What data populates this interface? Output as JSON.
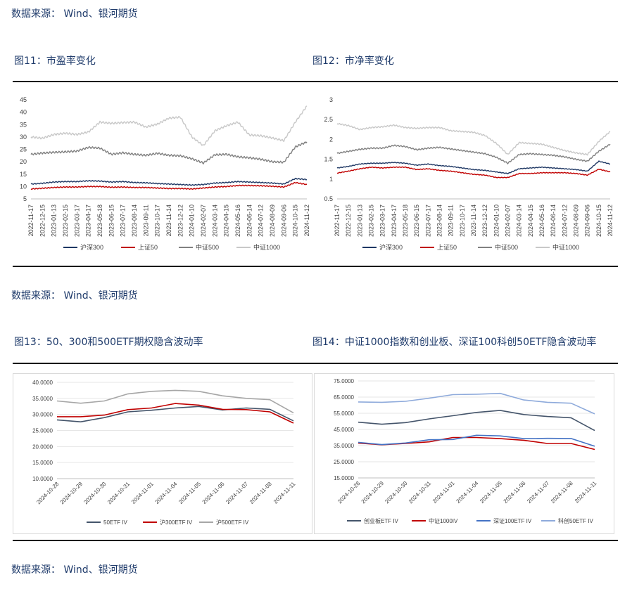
{
  "source_line_1": "数据来源： Wind、银河期货",
  "source_line_2": "数据来源： Wind、银河期货",
  "source_line_3": "数据来源： Wind、银河期货",
  "fig11": {
    "title": "图11：市盈率变化"
  },
  "fig12": {
    "title": "图12：市净率变化"
  },
  "fig13": {
    "title": "图13：50、300和500ETF期权隐含波动率"
  },
  "fig14": {
    "title": "图14：中证1000指数和创业板、深证100科创50ETF隐含波动率"
  },
  "chart_data": [
    {
      "id": "fig11",
      "type": "line",
      "title": "",
      "ylim": [
        5,
        45
      ],
      "yticks": [
        5,
        10,
        15,
        20,
        25,
        30,
        35,
        40,
        45
      ],
      "categories": [
        "2022-11-17",
        "2022-12-15",
        "2023-01-13",
        "2023-02-15",
        "2023-03-17",
        "2023-04-17",
        "2023-05-18",
        "2023-06-15",
        "2023-07-17",
        "2023-08-14",
        "2023-09-11",
        "2023-10-17",
        "2023-11-14",
        "2023-12-12",
        "2024-01-10",
        "2024-02-07",
        "2024-03-14",
        "2024-04-15",
        "2024-05-16",
        "2024-06-14",
        "2024-07-12",
        "2024-08-09",
        "2024-09-06",
        "2024-10-15",
        "2024-11-12"
      ],
      "legend_position": "bottom",
      "series": [
        {
          "name": "沪深300",
          "color": "#1f3864",
          "values": [
            11.0,
            11.3,
            11.8,
            12.0,
            12.0,
            12.3,
            12.2,
            11.8,
            12.0,
            11.6,
            11.5,
            11.2,
            11.0,
            10.8,
            10.6,
            10.8,
            11.4,
            11.6,
            12.0,
            11.8,
            11.6,
            11.4,
            11.0,
            13.2,
            12.8
          ]
        },
        {
          "name": "上证50",
          "color": "#c00000",
          "values": [
            9.0,
            9.3,
            9.6,
            9.8,
            9.8,
            10.0,
            10.0,
            9.7,
            9.8,
            9.6,
            9.6,
            9.4,
            9.2,
            9.2,
            9.0,
            9.4,
            9.8,
            10.0,
            10.4,
            10.4,
            10.3,
            10.1,
            9.8,
            11.6,
            10.8
          ]
        },
        {
          "name": "中证500",
          "color": "#808080",
          "values": [
            23.0,
            23.5,
            23.8,
            24.0,
            24.3,
            25.8,
            25.5,
            23.0,
            23.6,
            23.0,
            22.6,
            23.4,
            22.6,
            22.4,
            21.2,
            19.5,
            22.8,
            23.0,
            22.0,
            21.6,
            21.0,
            20.0,
            19.8,
            26.0,
            28.0
          ]
        },
        {
          "name": "中证1000",
          "color": "#c8c8c8",
          "values": [
            30.0,
            29.5,
            31.0,
            31.5,
            31.0,
            32.0,
            36.0,
            35.5,
            35.8,
            36.0,
            34.0,
            35.2,
            37.6,
            38.0,
            30.0,
            26.5,
            32.5,
            34.5,
            36.0,
            30.8,
            30.5,
            29.6,
            28.5,
            36.0,
            42.5
          ]
        }
      ]
    },
    {
      "id": "fig12",
      "type": "line",
      "title": "",
      "ylim": [
        0.5,
        3.0
      ],
      "yticks": [
        0.5,
        1.0,
        1.5,
        2.0,
        2.5,
        3.0
      ],
      "categories": [
        "2022-11-17",
        "2022-12-15",
        "2023-01-13",
        "2023-02-15",
        "2023-03-17",
        "2023-04-17",
        "2023-05-18",
        "2023-06-15",
        "2023-07-17",
        "2023-08-14",
        "2023-09-11",
        "2023-10-17",
        "2023-11-14",
        "2023-12-12",
        "2024-01-10",
        "2024-02-07",
        "2024-03-14",
        "2024-04-15",
        "2024-05-16",
        "2024-06-14",
        "2024-07-12",
        "2024-08-09",
        "2024-09-06",
        "2024-10-15",
        "2024-11-12"
      ],
      "legend_position": "bottom",
      "series": [
        {
          "name": "沪深300",
          "color": "#1f3864",
          "values": [
            1.28,
            1.32,
            1.38,
            1.4,
            1.4,
            1.42,
            1.4,
            1.35,
            1.38,
            1.34,
            1.32,
            1.28,
            1.24,
            1.22,
            1.18,
            1.14,
            1.26,
            1.28,
            1.3,
            1.28,
            1.26,
            1.24,
            1.2,
            1.45,
            1.38
          ]
        },
        {
          "name": "上证50",
          "color": "#c00000",
          "values": [
            1.15,
            1.2,
            1.26,
            1.3,
            1.28,
            1.3,
            1.3,
            1.24,
            1.26,
            1.22,
            1.2,
            1.16,
            1.12,
            1.1,
            1.04,
            1.04,
            1.14,
            1.14,
            1.16,
            1.16,
            1.16,
            1.14,
            1.1,
            1.25,
            1.18
          ]
        },
        {
          "name": "中证500",
          "color": "#808080",
          "values": [
            1.65,
            1.7,
            1.75,
            1.78,
            1.78,
            1.85,
            1.82,
            1.74,
            1.78,
            1.8,
            1.76,
            1.72,
            1.68,
            1.64,
            1.55,
            1.4,
            1.62,
            1.64,
            1.62,
            1.6,
            1.56,
            1.5,
            1.45,
            1.7,
            1.88
          ]
        },
        {
          "name": "中证1000",
          "color": "#c8c8c8",
          "values": [
            2.4,
            2.35,
            2.25,
            2.3,
            2.32,
            2.36,
            2.3,
            2.28,
            2.3,
            2.3,
            2.22,
            2.2,
            2.18,
            2.1,
            1.9,
            1.62,
            1.92,
            1.9,
            1.88,
            1.8,
            1.72,
            1.66,
            1.62,
            1.95,
            2.2
          ]
        }
      ]
    },
    {
      "id": "fig13",
      "type": "line",
      "title": "",
      "ylim": [
        10,
        40
      ],
      "yticks": [
        "10.0000",
        "15.0000",
        "20.0000",
        "25.0000",
        "30.0000",
        "35.0000",
        "40.0000"
      ],
      "categories": [
        "2024-10-28",
        "2024-10-29",
        "2024-10-30",
        "2024-10-31",
        "2024-11-01",
        "2024-11-04",
        "2024-11-05",
        "2024-11-06",
        "2024-11-07",
        "2024-11-08",
        "2024-11-11"
      ],
      "legend_position": "bottom",
      "series": [
        {
          "name": "50ETF IV",
          "color": "#44546a",
          "values": [
            28.3,
            27.7,
            29.0,
            30.8,
            31.3,
            32.0,
            32.5,
            31.4,
            32.0,
            31.6,
            28.0
          ]
        },
        {
          "name": "沪300ETF IV",
          "color": "#c00000",
          "values": [
            29.3,
            29.3,
            29.8,
            31.5,
            32.0,
            33.4,
            32.9,
            31.6,
            31.5,
            30.8,
            27.3
          ]
        },
        {
          "name": "沪500ETF IV",
          "color": "#a6a6a6",
          "values": [
            34.2,
            33.5,
            34.2,
            36.4,
            37.2,
            37.5,
            37.2,
            35.8,
            35.0,
            34.6,
            30.5
          ]
        }
      ]
    },
    {
      "id": "fig14",
      "type": "line",
      "title": "",
      "ylim": [
        15,
        75
      ],
      "yticks": [
        "15.0000",
        "25.0000",
        "35.0000",
        "45.0000",
        "55.0000",
        "65.0000",
        "75.0000"
      ],
      "categories": [
        "2024-10-28",
        "2024-10-29",
        "2024-10-30",
        "2024-10-31",
        "2024-11-01",
        "2024-11-04",
        "2024-11-05",
        "2024-11-06",
        "2024-11-07",
        "2024-11-08",
        "2024-11-11"
      ],
      "legend_position": "bottom",
      "series": [
        {
          "name": "创业板ETF IV",
          "color": "#44546a",
          "values": [
            49.5,
            48.2,
            49.2,
            51.5,
            53.5,
            55.5,
            56.8,
            54.2,
            53.0,
            52.2,
            44.3
          ]
        },
        {
          "name": "中证1000IV",
          "color": "#c00000",
          "values": [
            36.5,
            35.5,
            36.3,
            37.3,
            40.0,
            40.0,
            39.3,
            38.3,
            36.3,
            36.3,
            32.6
          ]
        },
        {
          "name": "深证100ETF IV",
          "color": "#4472c4",
          "values": [
            37.0,
            35.6,
            36.6,
            38.6,
            38.8,
            41.4,
            41.0,
            39.3,
            39.5,
            39.4,
            34.6
          ]
        },
        {
          "name": "科创50ETF IV",
          "color": "#8eaadb",
          "values": [
            62.0,
            61.8,
            62.4,
            64.3,
            66.5,
            66.8,
            67.3,
            63.2,
            61.8,
            61.2,
            54.6
          ]
        }
      ]
    }
  ]
}
